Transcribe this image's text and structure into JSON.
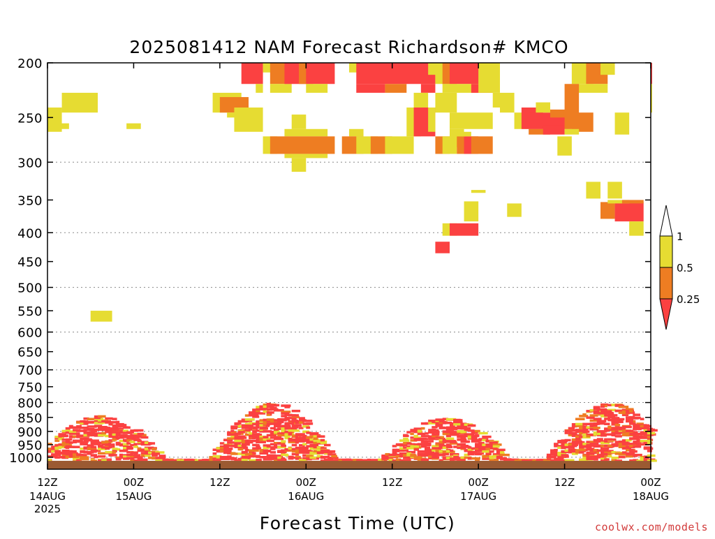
{
  "chart_data": {
    "type": "heatmap",
    "title": "2025081412 NAM Forecast Richardson# KMCO",
    "xlabel": "Forecast Time (UTC)",
    "ylabel": "",
    "y_axis": {
      "scale": "log-pressure",
      "inverted": true,
      "ylim": [
        1050,
        200
      ],
      "tick_values": [
        200,
        250,
        300,
        350,
        400,
        450,
        500,
        550,
        600,
        650,
        700,
        750,
        800,
        850,
        900,
        950,
        1000
      ],
      "tick_labels": [
        "200",
        "250",
        "300",
        "350",
        "400",
        "450",
        "500",
        "550",
        "600",
        "650",
        "700",
        "750",
        "800",
        "850",
        "900",
        "950",
        "1000"
      ],
      "dotted_gridlines": [
        300,
        400,
        500,
        600,
        700,
        800,
        900,
        1000
      ]
    },
    "x_axis": {
      "forecast_hour_range": [
        0,
        84
      ],
      "ticks": [
        {
          "hour": 0,
          "line1": "12Z",
          "line2": "14AUG",
          "line3": "2025"
        },
        {
          "hour": 12,
          "line1": "00Z",
          "line2": "15AUG",
          "line3": ""
        },
        {
          "hour": 24,
          "line1": "12Z",
          "line2": "",
          "line3": ""
        },
        {
          "hour": 36,
          "line1": "00Z",
          "line2": "16AUG",
          "line3": ""
        },
        {
          "hour": 48,
          "line1": "12Z",
          "line2": "",
          "line3": ""
        },
        {
          "hour": 60,
          "line1": "00Z",
          "line2": "17AUG",
          "line3": ""
        },
        {
          "hour": 72,
          "line1": "12Z",
          "line2": "",
          "line3": ""
        },
        {
          "hour": 84,
          "line1": "00Z",
          "line2": "18AUG",
          "line3": ""
        }
      ]
    },
    "legend": {
      "placement": "right",
      "labels": [
        "1",
        "0.5",
        "0.25"
      ],
      "bins": [
        {
          "name": "0.5–1",
          "color": "#e6dc32"
        },
        {
          "name": "0.25–0.5",
          "color": "#ee7d22"
        },
        {
          "name": "<0.25",
          "color": "#fb4141"
        }
      ],
      "over_color": "#ffffff",
      "under_color": "#fb4141"
    },
    "colors": {
      "y": "#e6dc32",
      "o": "#ee7d22",
      "r": "#fb4141",
      "ground": "#9b5a32"
    },
    "cells": [
      {
        "h": [
          27,
          29
        ],
        "p": [
          200,
          218
        ],
        "c": "r"
      },
      {
        "h": [
          29,
          29
        ],
        "p": [
          218,
          226
        ],
        "c": "y"
      },
      {
        "h": [
          30,
          31
        ],
        "p": [
          200,
          208
        ],
        "c": "y"
      },
      {
        "h": [
          31,
          33
        ],
        "p": [
          200,
          218
        ],
        "c": "o"
      },
      {
        "h": [
          31,
          33
        ],
        "p": [
          218,
          226
        ],
        "c": "y"
      },
      {
        "h": [
          33,
          35
        ],
        "p": [
          200,
          218
        ],
        "c": "r"
      },
      {
        "h": [
          35,
          36
        ],
        "p": [
          200,
          218
        ],
        "c": "o"
      },
      {
        "h": [
          36,
          39
        ],
        "p": [
          200,
          218
        ],
        "c": "r"
      },
      {
        "h": [
          36,
          38
        ],
        "p": [
          218,
          226
        ],
        "c": "y"
      },
      {
        "h": [
          42,
          43
        ],
        "p": [
          200,
          208
        ],
        "c": "y"
      },
      {
        "h": [
          43,
          53
        ],
        "p": [
          200,
          218
        ],
        "c": "r"
      },
      {
        "h": [
          43,
          46
        ],
        "p": [
          218,
          226
        ],
        "c": "r"
      },
      {
        "h": [
          47,
          49
        ],
        "p": [
          218,
          226
        ],
        "c": "o"
      },
      {
        "h": [
          52,
          53
        ],
        "p": [
          218,
          226
        ],
        "c": "r"
      },
      {
        "h": [
          53,
          54
        ],
        "p": [
          200,
          210
        ],
        "c": "y"
      },
      {
        "h": [
          54,
          55
        ],
        "p": [
          200,
          218
        ],
        "c": "y"
      },
      {
        "h": [
          55,
          56
        ],
        "p": [
          200,
          218
        ],
        "c": "o"
      },
      {
        "h": [
          56,
          61
        ],
        "p": [
          200,
          218
        ],
        "c": "r"
      },
      {
        "h": [
          55,
          60
        ],
        "p": [
          218,
          226
        ],
        "c": "y"
      },
      {
        "h": [
          59,
          61
        ],
        "p": [
          218,
          226
        ],
        "c": "r"
      },
      {
        "h": [
          60,
          62
        ],
        "p": [
          200,
          226
        ],
        "c": "y"
      },
      {
        "h": [
          62,
          62
        ],
        "p": [
          226,
          240
        ],
        "c": "y"
      },
      {
        "h": [
          54,
          56
        ],
        "p": [
          226,
          245
        ],
        "c": "y"
      },
      {
        "h": [
          61,
          62
        ],
        "p": [
          200,
          210
        ],
        "c": "y"
      },
      {
        "h": [
          63,
          64
        ],
        "p": [
          226,
          245
        ],
        "c": "y"
      },
      {
        "h": [
          73,
          75
        ],
        "p": [
          200,
          218
        ],
        "c": "y"
      },
      {
        "h": [
          75,
          77
        ],
        "p": [
          200,
          218
        ],
        "c": "o"
      },
      {
        "h": [
          73,
          77
        ],
        "p": [
          218,
          226
        ],
        "c": "y"
      },
      {
        "h": [
          77,
          78
        ],
        "p": [
          200,
          210
        ],
        "c": "y"
      },
      {
        "h": [
          84,
          84
        ],
        "p": [
          200,
          218
        ],
        "c": "r"
      },
      {
        "h": [
          84,
          84
        ],
        "p": [
          218,
          245
        ],
        "c": "y"
      },
      {
        "h": [
          2,
          6
        ],
        "p": [
          226,
          245
        ],
        "c": "y"
      },
      {
        "h": [
          0,
          1
        ],
        "p": [
          240,
          265
        ],
        "c": "y"
      },
      {
        "h": [
          1,
          2
        ],
        "p": [
          256,
          262
        ],
        "c": "y"
      },
      {
        "h": [
          11,
          12
        ],
        "p": [
          256,
          262
        ],
        "c": "y"
      },
      {
        "h": [
          23,
          26
        ],
        "p": [
          226,
          245
        ],
        "c": "y"
      },
      {
        "h": [
          24,
          27
        ],
        "p": [
          230,
          245
        ],
        "c": "o"
      },
      {
        "h": [
          25,
          27
        ],
        "p": [
          245,
          250
        ],
        "c": "y"
      },
      {
        "h": [
          26,
          29
        ],
        "p": [
          240,
          265
        ],
        "c": "y"
      },
      {
        "h": [
          34,
          35
        ],
        "p": [
          247,
          262
        ],
        "c": "y"
      },
      {
        "h": [
          33,
          38
        ],
        "p": [
          262,
          270
        ],
        "c": "y"
      },
      {
        "h": [
          30,
          31
        ],
        "p": [
          270,
          290
        ],
        "c": "y"
      },
      {
        "h": [
          31,
          39
        ],
        "p": [
          270,
          290
        ],
        "c": "o"
      },
      {
        "h": [
          33,
          38
        ],
        "p": [
          290,
          295
        ],
        "c": "y"
      },
      {
        "h": [
          34,
          35
        ],
        "p": [
          295,
          312
        ],
        "c": "y"
      },
      {
        "h": [
          42,
          43
        ],
        "p": [
          262,
          270
        ],
        "c": "y"
      },
      {
        "h": [
          41,
          43
        ],
        "p": [
          270,
          290
        ],
        "c": "o"
      },
      {
        "h": [
          43,
          45
        ],
        "p": [
          270,
          290
        ],
        "c": "y"
      },
      {
        "h": [
          45,
          47
        ],
        "p": [
          270,
          290
        ],
        "c": "o"
      },
      {
        "h": [
          47,
          50
        ],
        "p": [
          270,
          290
        ],
        "c": "y"
      },
      {
        "h": [
          50,
          51
        ],
        "p": [
          240,
          270
        ],
        "c": "y"
      },
      {
        "h": [
          51,
          53
        ],
        "p": [
          240,
          270
        ],
        "c": "r"
      },
      {
        "h": [
          51,
          52
        ],
        "p": [
          226,
          240
        ],
        "c": "y"
      },
      {
        "h": [
          53,
          53
        ],
        "p": [
          240,
          265
        ],
        "c": "y"
      },
      {
        "h": [
          54,
          55
        ],
        "p": [
          270,
          290
        ],
        "c": "o"
      },
      {
        "h": [
          55,
          56
        ],
        "p": [
          270,
          290
        ],
        "c": "y"
      },
      {
        "h": [
          56,
          57
        ],
        "p": [
          262,
          282
        ],
        "c": "y"
      },
      {
        "h": [
          56,
          61
        ],
        "p": [
          245,
          262
        ],
        "c": "y"
      },
      {
        "h": [
          57,
          58
        ],
        "p": [
          270,
          290
        ],
        "c": "o"
      },
      {
        "h": [
          58,
          59
        ],
        "p": [
          270,
          290
        ],
        "c": "r"
      },
      {
        "h": [
          59,
          61
        ],
        "p": [
          270,
          290
        ],
        "c": "o"
      },
      {
        "h": [
          57,
          58
        ],
        "p": [
          265,
          270
        ],
        "c": "y"
      },
      {
        "h": [
          65,
          66
        ],
        "p": [
          245,
          262
        ],
        "c": "y"
      },
      {
        "h": [
          66,
          68
        ],
        "p": [
          240,
          262
        ],
        "c": "r"
      },
      {
        "h": [
          67,
          72
        ],
        "p": [
          245,
          262
        ],
        "c": "r"
      },
      {
        "h": [
          67,
          69
        ],
        "p": [
          262,
          268
        ],
        "c": "o"
      },
      {
        "h": [
          69,
          71
        ],
        "p": [
          258,
          268
        ],
        "c": "r"
      },
      {
        "h": [
          68,
          69
        ],
        "p": [
          235,
          245
        ],
        "c": "y"
      },
      {
        "h": [
          70,
          72
        ],
        "p": [
          242,
          250
        ],
        "c": "o"
      },
      {
        "h": [
          72,
          73
        ],
        "p": [
          218,
          262
        ],
        "c": "o"
      },
      {
        "h": [
          73,
          75
        ],
        "p": [
          245,
          265
        ],
        "c": "o"
      },
      {
        "h": [
          72,
          73
        ],
        "p": [
          262,
          268
        ],
        "c": "y"
      },
      {
        "h": [
          71,
          72
        ],
        "p": [
          270,
          292
        ],
        "c": "y"
      },
      {
        "h": [
          79,
          80
        ],
        "p": [
          245,
          268
        ],
        "c": "y"
      },
      {
        "h": [
          59,
          60
        ],
        "p": [
          336,
          340
        ],
        "c": "y"
      },
      {
        "h": [
          75,
          76
        ],
        "p": [
          325,
          348
        ],
        "c": "y"
      },
      {
        "h": [
          78,
          79
        ],
        "p": [
          325,
          348
        ],
        "c": "y"
      },
      {
        "h": [
          58,
          59
        ],
        "p": [
          352,
          382
        ],
        "c": "y"
      },
      {
        "h": [
          64,
          65
        ],
        "p": [
          355,
          375
        ],
        "c": "y"
      },
      {
        "h": [
          77,
          78
        ],
        "p": [
          353,
          378
        ],
        "c": "o"
      },
      {
        "h": [
          79,
          82
        ],
        "p": [
          353,
          382
        ],
        "c": "r"
      },
      {
        "h": [
          78,
          80
        ],
        "p": [
          350,
          355
        ],
        "c": "y"
      },
      {
        "h": [
          80,
          82
        ],
        "p": [
          350,
          355
        ],
        "c": "o"
      },
      {
        "h": [
          81,
          82
        ],
        "p": [
          382,
          405
        ],
        "c": "y"
      },
      {
        "h": [
          55,
          56
        ],
        "p": [
          385,
          405
        ],
        "c": "y"
      },
      {
        "h": [
          56,
          59
        ],
        "p": [
          385,
          405
        ],
        "c": "r"
      },
      {
        "h": [
          54,
          55
        ],
        "p": [
          415,
          435
        ],
        "c": "r"
      },
      {
        "h": [
          6,
          8
        ],
        "p": [
          550,
          575
        ],
        "c": "y"
      },
      {
        "h": [
          0,
          84
        ],
        "p": [
          1015,
          1050
        ],
        "c": "g"
      }
    ],
    "low_level_streaks": {
      "hours_start": 0,
      "hours_end": 84,
      "p_top": 790,
      "p_bottom": 1015,
      "seed": 20250814,
      "hump_centres_hours": [
        7,
        31,
        55,
        78
      ],
      "hump_tops_pressure": [
        840,
        800,
        850,
        800
      ],
      "colors_weights": {
        "r": 0.72,
        "o": 0.14,
        "y": 0.14
      }
    }
  },
  "credit": "coolwx.com/models"
}
